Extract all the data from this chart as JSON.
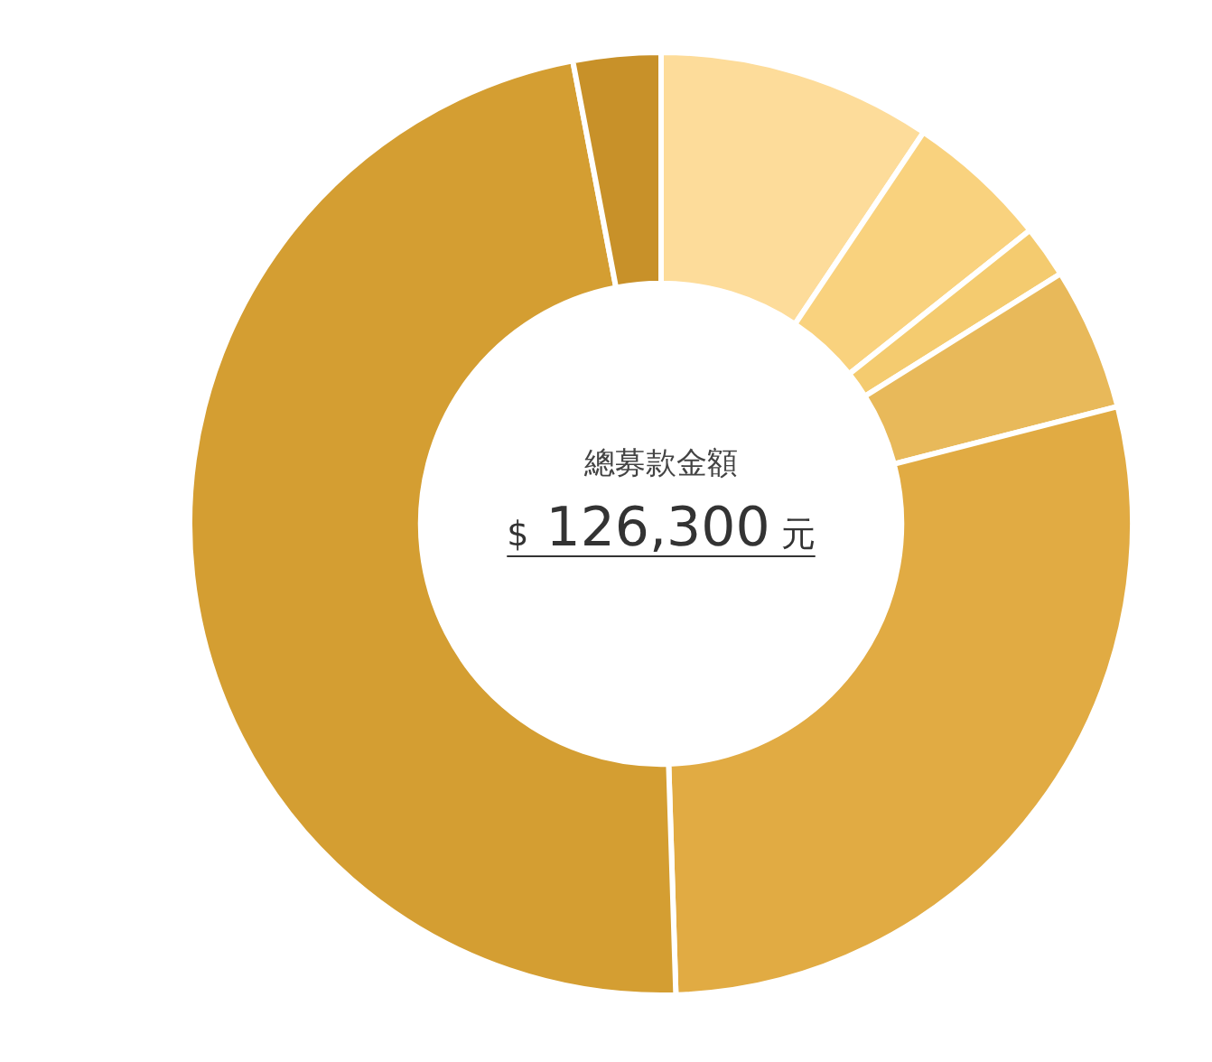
{
  "chart_data": {
    "type": "donut",
    "categories": [
      null,
      null,
      null,
      null,
      null,
      null,
      null
    ],
    "values": [
      9.4,
      4.9,
      1.8,
      4.9,
      28.5,
      47.5,
      3.0
    ],
    "colors": [
      "#fddc9a",
      "#f9d27e",
      "#f4cb6f",
      "#e8b95a",
      "#e1ab43",
      "#d49e32",
      "#c89129"
    ],
    "title": "總募款金額",
    "annotations": [
      "$ 126,300 元"
    ]
  }
}
